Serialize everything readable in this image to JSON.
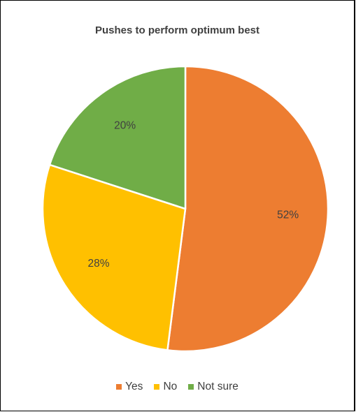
{
  "chart_data": {
    "type": "pie",
    "title": "Pushes to perform optimum best",
    "categories": [
      "Yes",
      "No",
      "Not sure"
    ],
    "values": [
      52,
      28,
      20
    ],
    "labels": [
      "52%",
      "28%",
      "20%"
    ],
    "colors": [
      "#ED7D31",
      "#FFC000",
      "#70AD47"
    ],
    "start_angle_deg": 0,
    "direction": "clockwise",
    "legend_position": "bottom"
  }
}
